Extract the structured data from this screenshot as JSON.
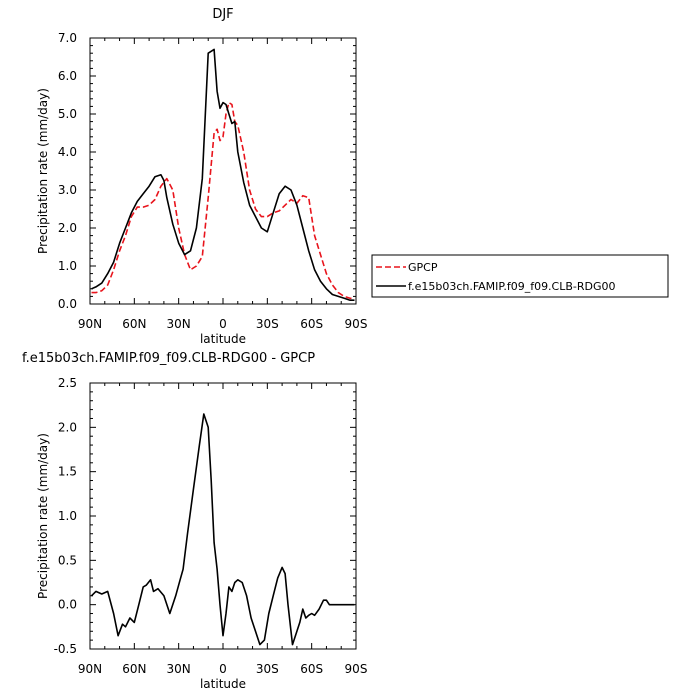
{
  "chart_data": [
    {
      "type": "line",
      "title": "DJF",
      "xlabel": "latitude",
      "ylabel": "Precipitation rate (mm/day)",
      "xlim": [
        90,
        -90
      ],
      "ylim": [
        0,
        7
      ],
      "x_ticks": [
        {
          "value": 90,
          "label": "90N"
        },
        {
          "value": 60,
          "label": "60N"
        },
        {
          "value": 30,
          "label": "30N"
        },
        {
          "value": 0,
          "label": "0"
        },
        {
          "value": -30,
          "label": "30S"
        },
        {
          "value": -60,
          "label": "60S"
        },
        {
          "value": -90,
          "label": "90S"
        }
      ],
      "y_ticks": [
        {
          "value": 0,
          "label": "0.0"
        },
        {
          "value": 1,
          "label": "1.0"
        },
        {
          "value": 2,
          "label": "2.0"
        },
        {
          "value": 3,
          "label": "3.0"
        },
        {
          "value": 4,
          "label": "4.0"
        },
        {
          "value": 5,
          "label": "5.0"
        },
        {
          "value": 6,
          "label": "6.0"
        },
        {
          "value": 7,
          "label": "7.0"
        }
      ],
      "legend_position": "right",
      "series": [
        {
          "name": "GPCP",
          "color": "#e8141c",
          "dash": "dashed",
          "x": [
            89,
            86,
            82,
            78,
            74,
            70,
            66,
            62,
            58,
            54,
            50,
            46,
            42,
            38,
            34,
            30,
            26,
            22,
            18,
            14,
            10,
            6,
            4,
            2,
            0,
            -2,
            -4,
            -6,
            -8,
            -10,
            -14,
            -18,
            -22,
            -26,
            -30,
            -34,
            -38,
            -42,
            -46,
            -50,
            -54,
            -58,
            -62,
            -66,
            -70,
            -74,
            -78,
            -82,
            -86,
            -89
          ],
          "y": [
            0.3,
            0.3,
            0.35,
            0.5,
            0.9,
            1.4,
            1.8,
            2.3,
            2.55,
            2.55,
            2.6,
            2.75,
            3.1,
            3.3,
            3.0,
            2.0,
            1.3,
            0.9,
            1.0,
            1.25,
            2.8,
            4.5,
            4.6,
            4.3,
            4.4,
            5.0,
            5.3,
            5.25,
            4.8,
            4.7,
            4.0,
            3.0,
            2.5,
            2.3,
            2.3,
            2.4,
            2.45,
            2.6,
            2.75,
            2.65,
            2.85,
            2.8,
            1.8,
            1.3,
            0.8,
            0.5,
            0.3,
            0.2,
            0.15,
            0.15
          ]
        },
        {
          "name": "f.e15b03ch.FAMIP.f09_f09.CLB-RDG00",
          "color": "#000000",
          "dash": "solid",
          "x": [
            89,
            86,
            82,
            78,
            74,
            70,
            66,
            62,
            58,
            54,
            50,
            46,
            42,
            40,
            38,
            34,
            30,
            26,
            22,
            18,
            14,
            10,
            6,
            4,
            2,
            0,
            -2,
            -4,
            -6,
            -8,
            -10,
            -14,
            -18,
            -22,
            -26,
            -30,
            -34,
            -38,
            -42,
            -46,
            -50,
            -54,
            -58,
            -62,
            -66,
            -70,
            -74,
            -78,
            -82,
            -86,
            -89
          ],
          "y": [
            0.4,
            0.45,
            0.55,
            0.8,
            1.1,
            1.6,
            2.0,
            2.4,
            2.7,
            2.9,
            3.1,
            3.35,
            3.4,
            3.25,
            2.8,
            2.1,
            1.6,
            1.3,
            1.4,
            2.0,
            3.3,
            6.6,
            6.7,
            5.6,
            5.15,
            5.3,
            5.25,
            5.0,
            4.75,
            4.8,
            4.0,
            3.2,
            2.6,
            2.3,
            2.0,
            1.9,
            2.4,
            2.9,
            3.1,
            3.0,
            2.6,
            2.0,
            1.4,
            0.9,
            0.6,
            0.4,
            0.25,
            0.2,
            0.15,
            0.1,
            0.1
          ]
        }
      ]
    },
    {
      "type": "line",
      "title": "f.e15b03ch.FAMIP.f09_f09.CLB-RDG00 - GPCP",
      "xlabel": "latitude",
      "ylabel": "Precipitation rate (mm/day)",
      "xlim": [
        90,
        -90
      ],
      "ylim": [
        -0.5,
        2.5
      ],
      "x_ticks": [
        {
          "value": 90,
          "label": "90N"
        },
        {
          "value": 60,
          "label": "60N"
        },
        {
          "value": 30,
          "label": "30N"
        },
        {
          "value": 0,
          "label": "0"
        },
        {
          "value": -30,
          "label": "30S"
        },
        {
          "value": -60,
          "label": "60S"
        },
        {
          "value": -90,
          "label": "90S"
        }
      ],
      "y_ticks": [
        {
          "value": -0.5,
          "label": "-0.5"
        },
        {
          "value": 0,
          "label": "0.0"
        },
        {
          "value": 0.5,
          "label": "0.5"
        },
        {
          "value": 1,
          "label": "1.0"
        },
        {
          "value": 1.5,
          "label": "1.5"
        },
        {
          "value": 2,
          "label": "2.0"
        },
        {
          "value": 2.5,
          "label": "2.5"
        }
      ],
      "series": [
        {
          "name": "",
          "color": "#000000",
          "dash": "solid",
          "x": [
            89,
            86,
            82,
            78,
            74,
            71,
            68,
            66,
            63,
            60,
            57,
            54,
            52,
            49,
            47,
            44,
            40,
            36,
            32,
            29,
            27,
            24,
            20,
            16,
            13,
            10,
            8,
            6,
            4,
            2,
            0,
            -2,
            -4,
            -6,
            -8,
            -10,
            -13,
            -16,
            -19,
            -22,
            -25,
            -28,
            -31,
            -34,
            -37,
            -40,
            -42,
            -44,
            -47,
            -50,
            -52,
            -54,
            -56,
            -58,
            -60,
            -62,
            -65,
            -68,
            -70,
            -72,
            -74,
            -76,
            -79,
            -82,
            -84,
            -86,
            -89
          ],
          "y": [
            0.1,
            0.15,
            0.12,
            0.15,
            -0.1,
            -0.35,
            -0.22,
            -0.25,
            -0.15,
            -0.2,
            0.0,
            0.2,
            0.22,
            0.28,
            0.15,
            0.18,
            0.1,
            -0.1,
            0.1,
            0.28,
            0.4,
            0.8,
            1.3,
            1.8,
            2.15,
            2.0,
            1.4,
            0.7,
            0.4,
            0.0,
            -0.35,
            -0.1,
            0.2,
            0.15,
            0.25,
            0.28,
            0.25,
            0.1,
            -0.15,
            -0.3,
            -0.45,
            -0.4,
            -0.1,
            0.1,
            0.3,
            0.42,
            0.35,
            0.0,
            -0.45,
            -0.3,
            -0.2,
            -0.05,
            -0.15,
            -0.12,
            -0.1,
            -0.12,
            -0.05,
            0.05,
            0.05,
            0.0,
            0.0,
            0.0,
            0.0,
            0.0,
            0.0,
            0.0,
            0.0
          ]
        }
      ]
    }
  ]
}
